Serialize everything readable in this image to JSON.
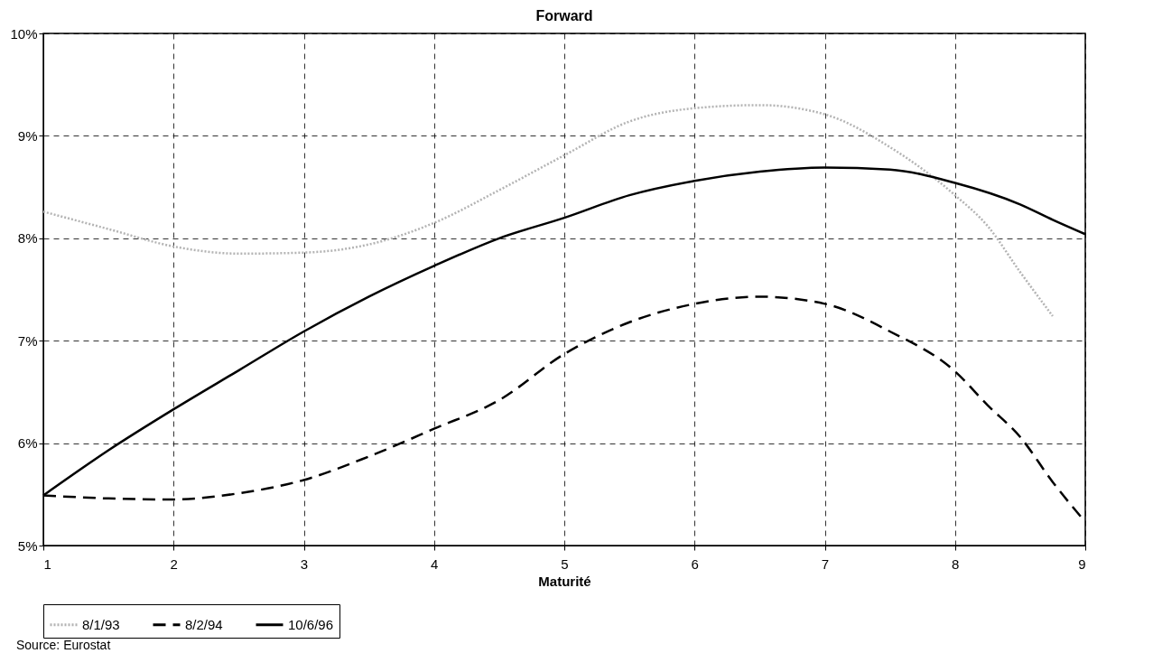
{
  "chart_data": {
    "type": "line",
    "title": "Forward",
    "xlabel": "Maturité",
    "annotations": [
      "Source: Eurostat"
    ],
    "xlim": [
      1,
      9
    ],
    "xticks": [
      1,
      2,
      3,
      4,
      5,
      6,
      7,
      8,
      9
    ],
    "ylim": [
      5,
      10
    ],
    "yticks": [
      {
        "value": 5,
        "label": "5%"
      },
      {
        "value": 6,
        "label": "6%"
      },
      {
        "value": 7,
        "label": "7%"
      },
      {
        "value": 8,
        "label": "8%"
      },
      {
        "value": 9,
        "label": "9%"
      },
      {
        "value": 10,
        "label": "10%"
      }
    ],
    "grid": true,
    "legend": "bottom",
    "marker": "none",
    "series": [
      {
        "name": "8/1/93",
        "color": "#b4b4b4",
        "line_style": "dotted",
        "x": [
          1,
          1.5,
          2,
          2.5,
          3,
          3.5,
          4,
          4.5,
          5,
          5.5,
          6,
          6.5,
          7,
          7.5,
          8,
          8.25,
          8.5,
          8.75
        ],
        "values": [
          8.26,
          8.09,
          7.92,
          7.85,
          7.86,
          7.94,
          8.15,
          8.47,
          8.81,
          9.14,
          9.27,
          9.3,
          9.21,
          8.89,
          8.42,
          8.12,
          7.67,
          7.24
        ]
      },
      {
        "name": "8/2/94",
        "color": "#000000",
        "line_style": "dashed",
        "x": [
          1,
          1.5,
          2,
          2.5,
          3,
          3.5,
          4,
          4.5,
          5,
          5.5,
          6,
          6.5,
          7,
          7.5,
          8,
          8.25,
          8.5,
          8.75,
          9
        ],
        "values": [
          5.49,
          5.46,
          5.45,
          5.51,
          5.64,
          5.87,
          6.14,
          6.42,
          6.87,
          7.18,
          7.36,
          7.43,
          7.36,
          7.09,
          6.7,
          6.37,
          6.06,
          5.62,
          5.23
        ]
      },
      {
        "name": "10/6/96",
        "color": "#000000",
        "line_style": "solid",
        "x": [
          1,
          1.5,
          2,
          2.5,
          3,
          3.5,
          4,
          4.5,
          5,
          5.5,
          6,
          6.5,
          7,
          7.5,
          8,
          8.5,
          8.75,
          9
        ],
        "values": [
          5.49,
          5.93,
          6.33,
          6.71,
          7.09,
          7.43,
          7.73,
          8.0,
          8.2,
          8.42,
          8.56,
          8.65,
          8.69,
          8.67,
          8.54,
          8.33,
          8.18,
          8.04
        ]
      }
    ]
  }
}
